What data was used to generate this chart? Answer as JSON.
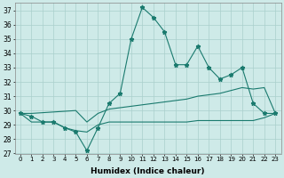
{
  "xlabel": "Humidex (Indice chaleur)",
  "x": [
    0,
    1,
    2,
    3,
    4,
    5,
    6,
    7,
    8,
    9,
    10,
    11,
    12,
    13,
    14,
    15,
    16,
    17,
    18,
    19,
    20,
    21,
    22,
    23
  ],
  "line1": [
    29.8,
    29.6,
    29.2,
    29.2,
    28.8,
    28.5,
    27.2,
    28.8,
    30.5,
    31.2,
    35.0,
    37.2,
    36.5,
    35.5,
    33.2,
    33.2,
    34.5,
    33.0,
    32.2,
    32.5,
    33.0,
    30.5,
    29.8,
    29.8
  ],
  "line2": [
    29.8,
    29.2,
    29.2,
    29.2,
    28.8,
    28.6,
    28.5,
    29.0,
    29.2,
    29.2,
    29.2,
    29.2,
    29.2,
    29.2,
    29.2,
    29.2,
    29.3,
    29.3,
    29.3,
    29.3,
    29.3,
    29.3,
    29.5,
    29.8
  ],
  "line3": [
    29.8,
    29.8,
    29.85,
    29.9,
    29.95,
    30.0,
    29.2,
    29.8,
    30.1,
    30.2,
    30.3,
    30.4,
    30.5,
    30.6,
    30.7,
    30.8,
    31.0,
    31.1,
    31.2,
    31.4,
    31.6,
    31.5,
    31.6,
    29.8
  ],
  "line_color": "#1a7a6e",
  "bg_color": "#ceeae8",
  "grid_color": "#aacfcc",
  "ylim": [
    27,
    37.5
  ],
  "yticks": [
    27,
    28,
    29,
    30,
    31,
    32,
    33,
    34,
    35,
    36,
    37
  ],
  "xticks": [
    0,
    1,
    2,
    3,
    4,
    5,
    6,
    7,
    8,
    9,
    10,
    11,
    12,
    13,
    14,
    15,
    16,
    17,
    18,
    19,
    20,
    21,
    22,
    23
  ]
}
